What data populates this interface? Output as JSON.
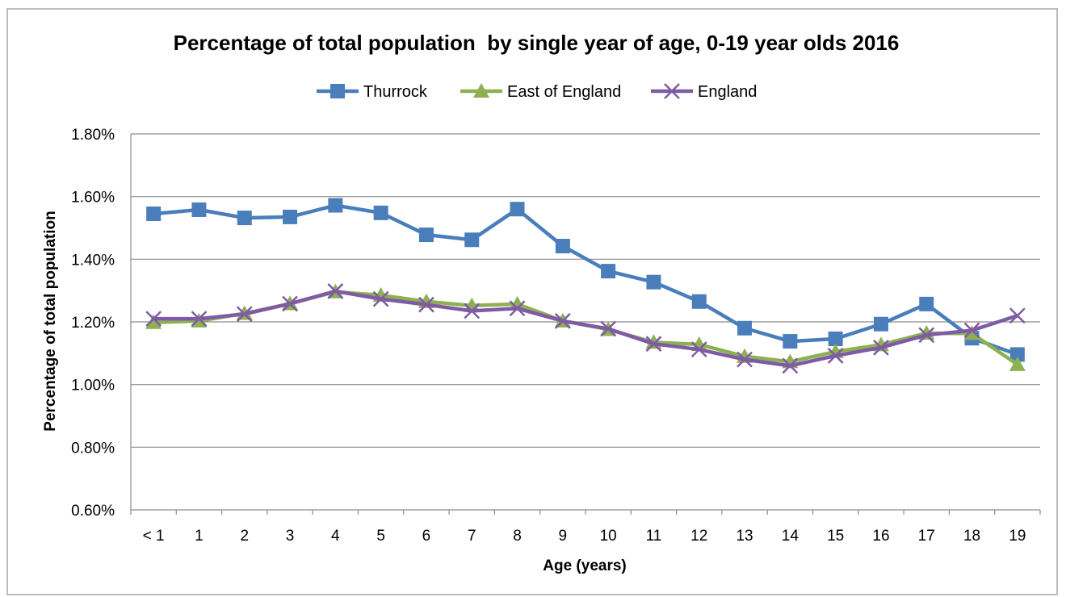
{
  "chart_data": {
    "type": "line",
    "title": "Percentage of total population  by single year of age, 0-19 year olds 2016",
    "xlabel": "Age (years)",
    "ylabel": "Percentage of total population",
    "categories": [
      "< 1",
      "1",
      "2",
      "3",
      "4",
      "5",
      "6",
      "7",
      "8",
      "9",
      "10",
      "11",
      "12",
      "13",
      "14",
      "15",
      "16",
      "17",
      "18",
      "19"
    ],
    "ylim": [
      0.6,
      1.8
    ],
    "yticks": [
      "0.60%",
      "0.80%",
      "1.00%",
      "1.20%",
      "1.40%",
      "1.60%",
      "1.80%"
    ],
    "grid": true,
    "legend_position": "top",
    "series": [
      {
        "name": "Thurrock",
        "color": "#4a7ebb",
        "marker": "square",
        "values": [
          1.545,
          1.558,
          1.532,
          1.535,
          1.572,
          1.548,
          1.478,
          1.462,
          1.56,
          1.442,
          1.362,
          1.327,
          1.265,
          1.18,
          1.138,
          1.146,
          1.193,
          1.257,
          1.148,
          1.096
        ]
      },
      {
        "name": "East of England",
        "color": "#8db050",
        "marker": "triangle",
        "values": [
          1.198,
          1.203,
          1.227,
          1.258,
          1.296,
          1.285,
          1.265,
          1.252,
          1.257,
          1.203,
          1.176,
          1.135,
          1.128,
          1.09,
          1.073,
          1.105,
          1.127,
          1.164,
          1.163,
          1.064
        ]
      },
      {
        "name": "England",
        "color": "#7f5ba6",
        "marker": "x",
        "values": [
          1.21,
          1.21,
          1.225,
          1.258,
          1.298,
          1.273,
          1.255,
          1.235,
          1.243,
          1.203,
          1.178,
          1.13,
          1.112,
          1.08,
          1.06,
          1.092,
          1.118,
          1.158,
          1.173,
          1.22
        ]
      }
    ]
  }
}
